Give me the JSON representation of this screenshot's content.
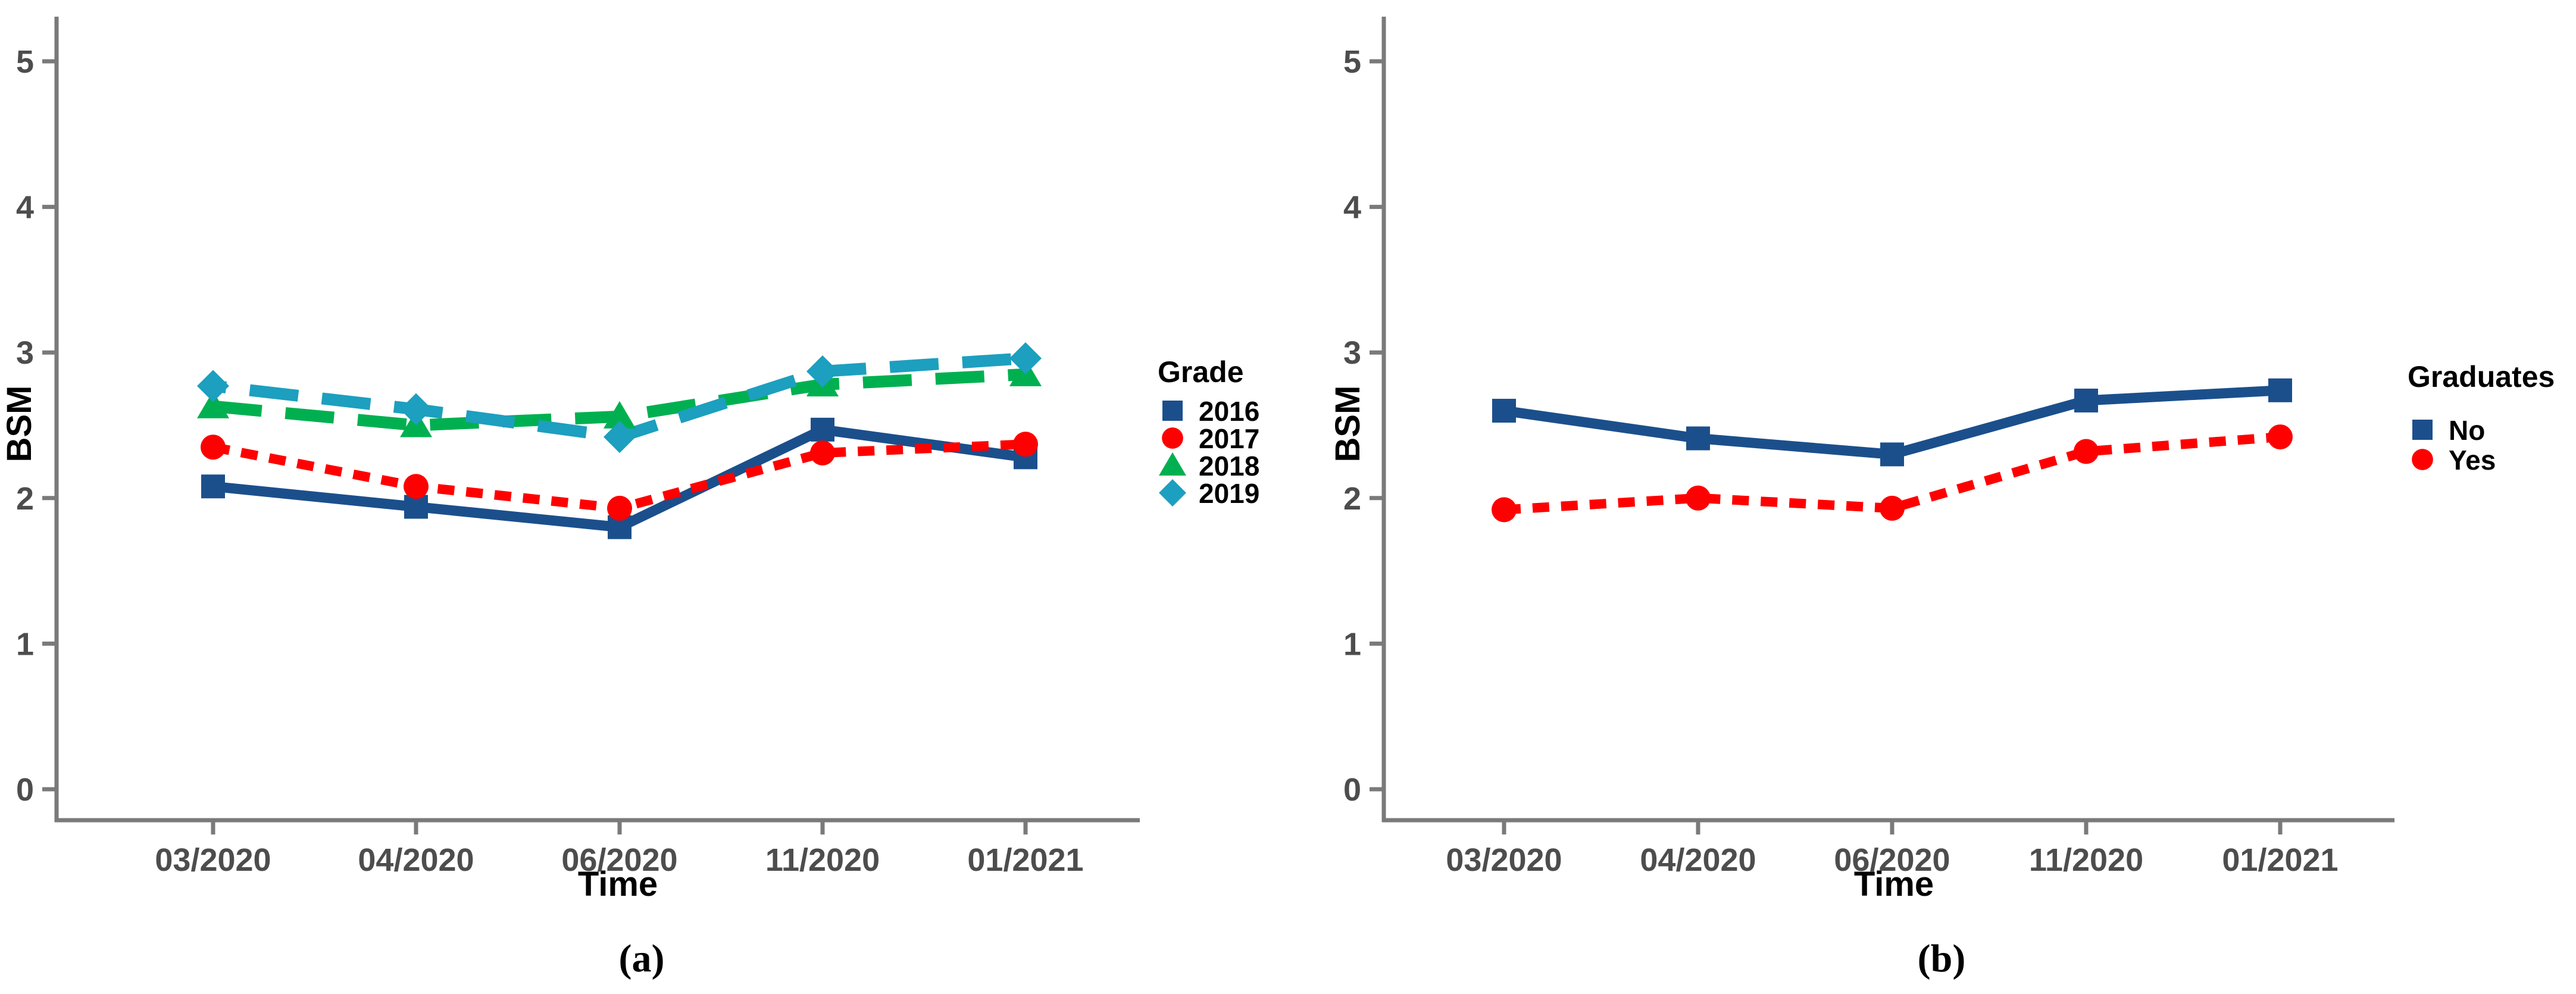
{
  "figure": {
    "background_color": "#ffffff",
    "axis_line_color": "#7a7a7a",
    "tick_text_color": "#4d4d4d",
    "axis_title_color": "#000000"
  },
  "chart_data": [
    {
      "type": "line",
      "caption": "(a)",
      "xlabel": "Time",
      "ylabel": "BSM",
      "categories": [
        "03/2020",
        "04/2020",
        "06/2020",
        "11/2020",
        "01/2021"
      ],
      "yticks": [
        0,
        1,
        2,
        3,
        4,
        5
      ],
      "ylim": [
        0,
        5
      ],
      "grid": false,
      "legend_position": "right",
      "legend_title": "Grade",
      "series": [
        {
          "name": "2016",
          "color": "#1B4F8C",
          "marker": "square",
          "line_style": "solid",
          "values": [
            2.08,
            1.94,
            1.8,
            2.47,
            2.28
          ]
        },
        {
          "name": "2017",
          "color": "#FF0000",
          "marker": "circle",
          "line_style": "dash-short",
          "values": [
            2.35,
            2.08,
            1.93,
            2.31,
            2.37
          ]
        },
        {
          "name": "2018",
          "color": "#00B050",
          "marker": "triangle",
          "line_style": "dash-long",
          "values": [
            2.63,
            2.5,
            2.56,
            2.78,
            2.85
          ]
        },
        {
          "name": "2019",
          "color": "#1D9FBF",
          "marker": "diamond",
          "line_style": "dash-long",
          "values": [
            2.77,
            2.61,
            2.42,
            2.87,
            2.96
          ]
        }
      ]
    },
    {
      "type": "line",
      "caption": "(b)",
      "xlabel": "Time",
      "ylabel": "BSM",
      "categories": [
        "03/2020",
        "04/2020",
        "06/2020",
        "11/2020",
        "01/2021"
      ],
      "yticks": [
        0,
        1,
        2,
        3,
        4,
        5
      ],
      "ylim": [
        0,
        5
      ],
      "grid": false,
      "legend_position": "right",
      "legend_title": "Graduates",
      "series": [
        {
          "name": "No",
          "color": "#1B4F8C",
          "marker": "square",
          "line_style": "solid",
          "values": [
            2.6,
            2.41,
            2.3,
            2.67,
            2.74
          ]
        },
        {
          "name": "Yes",
          "color": "#FF0000",
          "marker": "circle",
          "line_style": "dash-short",
          "values": [
            1.92,
            2.0,
            1.93,
            2.32,
            2.42
          ]
        }
      ]
    }
  ]
}
